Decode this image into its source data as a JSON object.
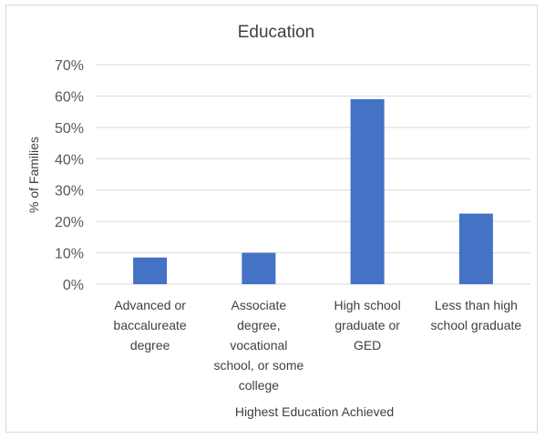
{
  "chart_data": {
    "type": "bar",
    "title": "Education",
    "xlabel": "Highest Education Achieved",
    "ylabel": "% of Families",
    "ylim": [
      0,
      70
    ],
    "yticks": [
      "0%",
      "10%",
      "20%",
      "30%",
      "40%",
      "50%",
      "60%",
      "70%"
    ],
    "grid": true,
    "legend": "none",
    "bar_color": "#4472C4",
    "categories": [
      "Advanced or baccalureate degree",
      "Associate degree, vocational school, or some college",
      "High school graduate or GED",
      "Less than high school graduate"
    ],
    "category_lines": [
      [
        "Advanced or",
        "baccalureate",
        "degree"
      ],
      [
        "Associate",
        "degree,",
        "vocational",
        "school, or some",
        "college"
      ],
      [
        "High school",
        "graduate or",
        "GED"
      ],
      [
        "Less than high",
        "school graduate"
      ]
    ],
    "values": [
      8.5,
      10,
      59,
      22.5
    ]
  }
}
